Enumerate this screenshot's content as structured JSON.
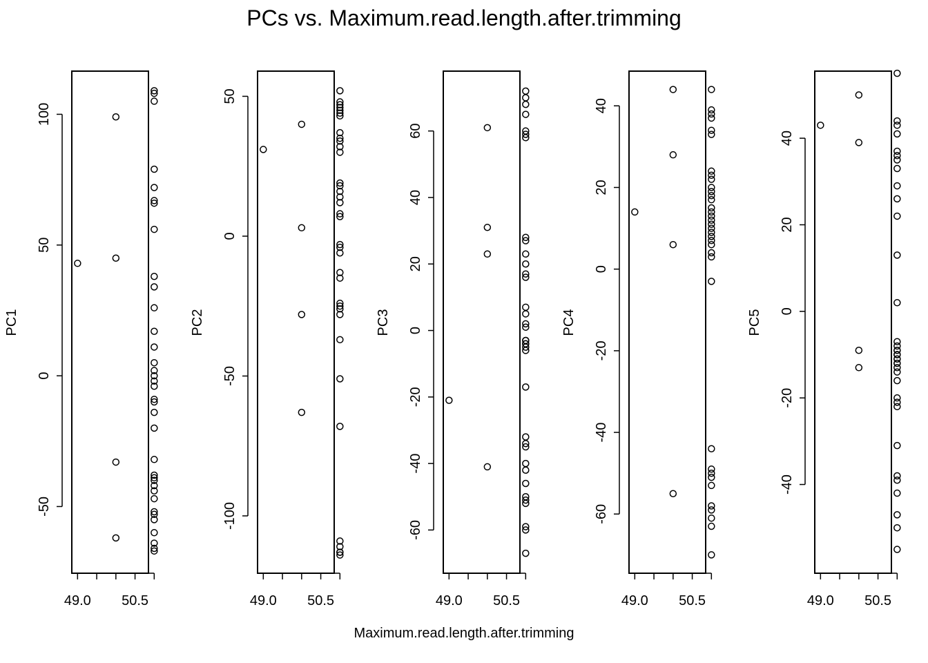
{
  "title": "PCs vs. Maximum.read.length.after.trimming",
  "xlabel": "Maximum.read.length.after.trimming",
  "chart_data": [
    {
      "type": "scatter",
      "ylabel": "PC1",
      "xlim": [
        48.85,
        50.85
      ],
      "ylim": [
        -75.5,
        116.5
      ],
      "xticks": [
        49.0,
        49.5,
        50.0,
        50.5,
        51.0
      ],
      "xticklabels": [
        "49.0",
        "",
        "",
        "50.5",
        ""
      ],
      "yticks": [
        -50,
        0,
        50,
        100
      ],
      "x": [
        49.0,
        50.0,
        50.0,
        50.0,
        50.0,
        51.0,
        51.0,
        51.0,
        51.0,
        51.0,
        51.0,
        51.0,
        51.0,
        51.0,
        51.0,
        51.0,
        51.0,
        51.0,
        51.0,
        51.0,
        51.0,
        51.0,
        51.0,
        51.0,
        51.0,
        51.0,
        51.0,
        51.0,
        51.0,
        51.0,
        51.0,
        51.0,
        51.0,
        51.0,
        51.0,
        51.0,
        51.0,
        51.0,
        51.0,
        51.0,
        51.0
      ],
      "y": [
        43,
        99,
        45,
        -33,
        -62,
        109,
        108,
        105,
        79,
        72,
        67,
        66,
        56,
        38,
        34,
        26,
        17,
        11,
        5,
        2,
        0,
        -2,
        -4,
        -9,
        -10,
        -14,
        -20,
        -32,
        -38,
        -39,
        -40,
        -42,
        -44,
        -47,
        -52,
        -53,
        -55,
        -60,
        -64,
        -66,
        -67
      ]
    },
    {
      "type": "scatter",
      "ylabel": "PC2",
      "xlim": [
        48.85,
        50.85
      ],
      "ylim": [
        -120.5,
        59
      ],
      "xticks": [
        49.0,
        49.5,
        50.0,
        50.5,
        51.0
      ],
      "xticklabels": [
        "49.0",
        "",
        "",
        "50.5",
        ""
      ],
      "yticks": [
        -100,
        -50,
        0,
        50
      ],
      "x": [
        49.0,
        50.0,
        50.0,
        50.0,
        50.0,
        51.0,
        51.0,
        51.0,
        51.0,
        51.0,
        51.0,
        51.0,
        51.0,
        51.0,
        51.0,
        51.0,
        51.0,
        51.0,
        51.0,
        51.0,
        51.0,
        51.0,
        51.0,
        51.0,
        51.0,
        51.0,
        51.0,
        51.0,
        51.0,
        51.0,
        51.0,
        51.0,
        51.0,
        51.0,
        51.0,
        51.0,
        51.0,
        51.0,
        51.0,
        51.0,
        51.0
      ],
      "y": [
        31,
        40,
        3,
        -28,
        -63,
        52,
        48,
        47,
        46,
        45,
        44,
        43,
        37,
        35,
        34,
        32,
        30,
        19,
        18,
        16,
        14,
        12,
        8,
        7,
        -3,
        -4,
        -6,
        -13,
        -15,
        -24,
        -25,
        -26,
        -28,
        -37,
        -51,
        -68,
        -109,
        -113,
        -114,
        -113,
        -111
      ]
    },
    {
      "type": "scatter",
      "ylabel": "PC3",
      "xlim": [
        48.85,
        50.85
      ],
      "ylim": [
        -73,
        78
      ],
      "xticks": [
        49.0,
        49.5,
        50.0,
        50.5,
        51.0
      ],
      "xticklabels": [
        "49.0",
        "",
        "",
        "50.5",
        ""
      ],
      "yticks": [
        -60,
        -40,
        -20,
        0,
        20,
        40,
        60
      ],
      "x": [
        49.0,
        50.0,
        50.0,
        50.0,
        50.0,
        51.0,
        51.0,
        51.0,
        51.0,
        51.0,
        51.0,
        51.0,
        51.0,
        51.0,
        51.0,
        51.0,
        51.0,
        51.0,
        51.0,
        51.0,
        51.0,
        51.0,
        51.0,
        51.0,
        51.0,
        51.0,
        51.0,
        51.0,
        51.0,
        51.0,
        51.0,
        51.0,
        51.0,
        51.0,
        51.0,
        51.0,
        51.0,
        51.0,
        51.0,
        51.0,
        51.0
      ],
      "y": [
        -21,
        61,
        31,
        23,
        -41,
        72,
        70,
        68,
        65,
        60,
        59,
        58,
        28,
        27,
        23,
        20,
        17,
        16,
        7,
        5,
        2,
        1,
        -3,
        -4,
        -5,
        -6,
        -17,
        -32,
        -34,
        -35,
        -40,
        -42,
        -46,
        -50,
        -51,
        -52,
        -59,
        -60,
        -67,
        -4,
        -3
      ]
    },
    {
      "type": "scatter",
      "ylabel": "PC4",
      "xlim": [
        48.85,
        50.85
      ],
      "ylim": [
        -74.5,
        48.5
      ],
      "xticks": [
        49.0,
        49.5,
        50.0,
        50.5,
        51.0
      ],
      "xticklabels": [
        "49.0",
        "",
        "",
        "50.5",
        ""
      ],
      "yticks": [
        -60,
        -40,
        -20,
        0,
        20,
        40
      ],
      "x": [
        49.0,
        50.0,
        50.0,
        50.0,
        50.0,
        51.0,
        51.0,
        51.0,
        51.0,
        51.0,
        51.0,
        51.0,
        51.0,
        51.0,
        51.0,
        51.0,
        51.0,
        51.0,
        51.0,
        51.0,
        51.0,
        51.0,
        51.0,
        51.0,
        51.0,
        51.0,
        51.0,
        51.0,
        51.0,
        51.0,
        51.0,
        51.0,
        51.0,
        51.0,
        51.0,
        51.0,
        51.0,
        51.0,
        51.0,
        51.0,
        51.0
      ],
      "y": [
        14,
        44,
        28,
        6,
        -55,
        44,
        39,
        38,
        37,
        34,
        33,
        24,
        23,
        20,
        19,
        18,
        15,
        14,
        13,
        12,
        11,
        9,
        7,
        6,
        4,
        3,
        -3,
        -44,
        -49,
        -50,
        -51,
        -53,
        -58,
        -59,
        -61,
        -63,
        -70,
        22,
        17,
        10,
        8
      ]
    },
    {
      "type": "scatter",
      "ylabel": "PC5",
      "xlim": [
        48.85,
        50.85
      ],
      "ylim": [
        -60.5,
        55.5
      ],
      "xticks": [
        49.0,
        49.5,
        50.0,
        50.5,
        51.0
      ],
      "xticklabels": [
        "49.0",
        "",
        "",
        "50.5",
        ""
      ],
      "yticks": [
        -40,
        -20,
        0,
        20,
        40
      ],
      "x": [
        49.0,
        50.0,
        50.0,
        50.0,
        50.0,
        51.0,
        51.0,
        51.0,
        51.0,
        51.0,
        51.0,
        51.0,
        51.0,
        51.0,
        51.0,
        51.0,
        51.0,
        51.0,
        51.0,
        51.0,
        51.0,
        51.0,
        51.0,
        51.0,
        51.0,
        51.0,
        51.0,
        51.0,
        51.0,
        51.0,
        51.0,
        51.0,
        51.0,
        51.0,
        51.0,
        51.0,
        51.0,
        51.0,
        51.0,
        51.0,
        51.0
      ],
      "y": [
        43,
        50,
        39,
        -9,
        -13,
        55,
        44,
        43,
        41,
        37,
        36,
        35,
        33,
        29,
        26,
        22,
        13,
        2,
        -7,
        -8,
        -9,
        -10,
        -11,
        -12,
        -13,
        -14,
        -16,
        -20,
        -21,
        -22,
        -31,
        -38,
        -39,
        -42,
        -47,
        -50,
        -55,
        -11,
        -10,
        -9,
        -12
      ]
    }
  ]
}
